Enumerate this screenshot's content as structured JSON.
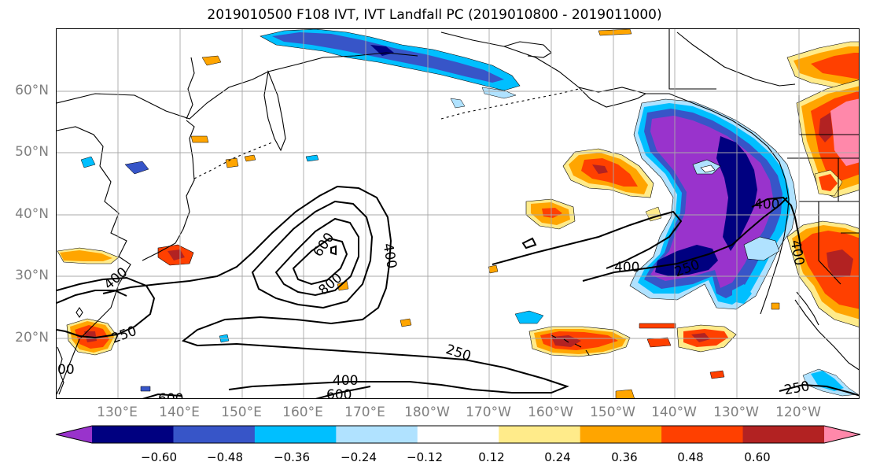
{
  "title": "2019010500 F108 IVT, IVT Landfall PC (2019010800 - 2019011000)",
  "lat_labels": [
    "60°N",
    "50°N",
    "40°N",
    "30°N",
    "20°N"
  ],
  "lon_labels": [
    "130°E",
    "140°E",
    "150°E",
    "160°E",
    "170°E",
    "180°W",
    "170°W",
    "160°W",
    "150°W",
    "140°W",
    "130°W",
    "120°W"
  ],
  "colorbar": {
    "colors": [
      "#9933cc",
      "#000080",
      "#3755c8",
      "#00bfff",
      "#b0e2ff",
      "#ffffff",
      "#ffeb8a",
      "#ffa500",
      "#ff4000",
      "#b22222",
      "#ff88aa"
    ],
    "tick_labels": [
      "−0.60",
      "−0.48",
      "−0.36",
      "−0.24",
      "−0.12",
      "0.12",
      "0.24",
      "0.36",
      "0.48",
      "0.60"
    ],
    "extend": "both"
  },
  "contour_labels": [
    "600",
    "400",
    "800",
    "400",
    "250",
    "400",
    "250",
    "400",
    "250",
    "400",
    "600",
    "600",
    "250",
    "400",
    "00"
  ],
  "colors": {
    "purple": "#9933cc",
    "navy": "#000080",
    "royal_blue": "#3755c8",
    "sky_blue": "#00bfff",
    "light_blue": "#b0e2ff",
    "light_yellow": "#ffeb8a",
    "orange": "#ffa500",
    "red_orange": "#ff4000",
    "dark_red": "#b22222",
    "pink": "#ff88aa",
    "grid": "#a9a9a9",
    "tick_text": "#808080"
  }
}
